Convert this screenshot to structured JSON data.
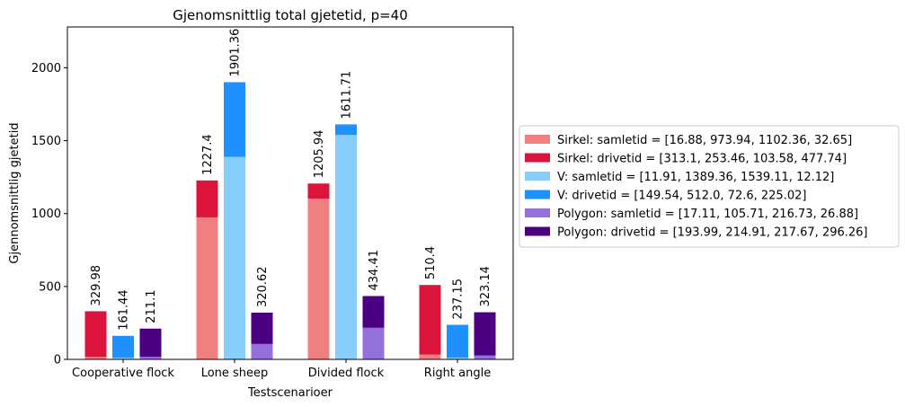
{
  "chart_data": {
    "type": "bar",
    "stacked": true,
    "title": "Gjenomsnittlig total gjetetid, p=40",
    "xlabel": "Testscenarioer",
    "ylabel": "Gjennomsnittlig gjetetid",
    "ylim": [
      0,
      2280
    ],
    "yticks": [
      0,
      500,
      1000,
      1500,
      2000
    ],
    "categories": [
      "Cooperative flock",
      "Lone sheep",
      "Divided flock",
      "Right angle"
    ],
    "groups": [
      {
        "name": "Sirkel",
        "totals_labels": [
          "329.98",
          "1227.4",
          "1205.94",
          "510.4"
        ],
        "segments": [
          {
            "name": "Sirkel: samletid = [16.88, 973.94, 1102.36, 32.65]",
            "color": "#f08080",
            "values": [
              16.88,
              973.94,
              1102.36,
              32.65
            ]
          },
          {
            "name": "Sirkel: drivetid = [313.1, 253.46, 103.58, 477.74]",
            "color": "#dc143c",
            "values": [
              313.1,
              253.46,
              103.58,
              477.74
            ]
          }
        ]
      },
      {
        "name": "V",
        "totals_labels": [
          "161.44",
          "1901.36",
          "1611.71",
          "237.15"
        ],
        "segments": [
          {
            "name": "V: samletid = [11.91, 1389.36, 1539.11, 12.12]",
            "color": "#87cefa",
            "values": [
              11.91,
              1389.36,
              1539.11,
              12.12
            ]
          },
          {
            "name": "V: drivetid = [149.54, 512.0, 72.6, 225.02]",
            "color": "#1e90ff",
            "values": [
              149.54,
              512.0,
              72.6,
              225.02
            ]
          }
        ]
      },
      {
        "name": "Polygon",
        "totals_labels": [
          "211.1",
          "320.62",
          "434.41",
          "323.14"
        ],
        "segments": [
          {
            "name": "Polygon: samletid = [17.11, 105.71, 216.73, 26.88]",
            "color": "#9370db",
            "values": [
              17.11,
              105.71,
              216.73,
              26.88
            ]
          },
          {
            "name": "Polygon: drivetid = [193.99, 214.91, 217.67, 296.26]",
            "color": "#4b0082",
            "values": [
              193.99,
              214.91,
              217.67,
              296.26
            ]
          }
        ]
      }
    ],
    "legend_placement": "center-left, outside right"
  }
}
